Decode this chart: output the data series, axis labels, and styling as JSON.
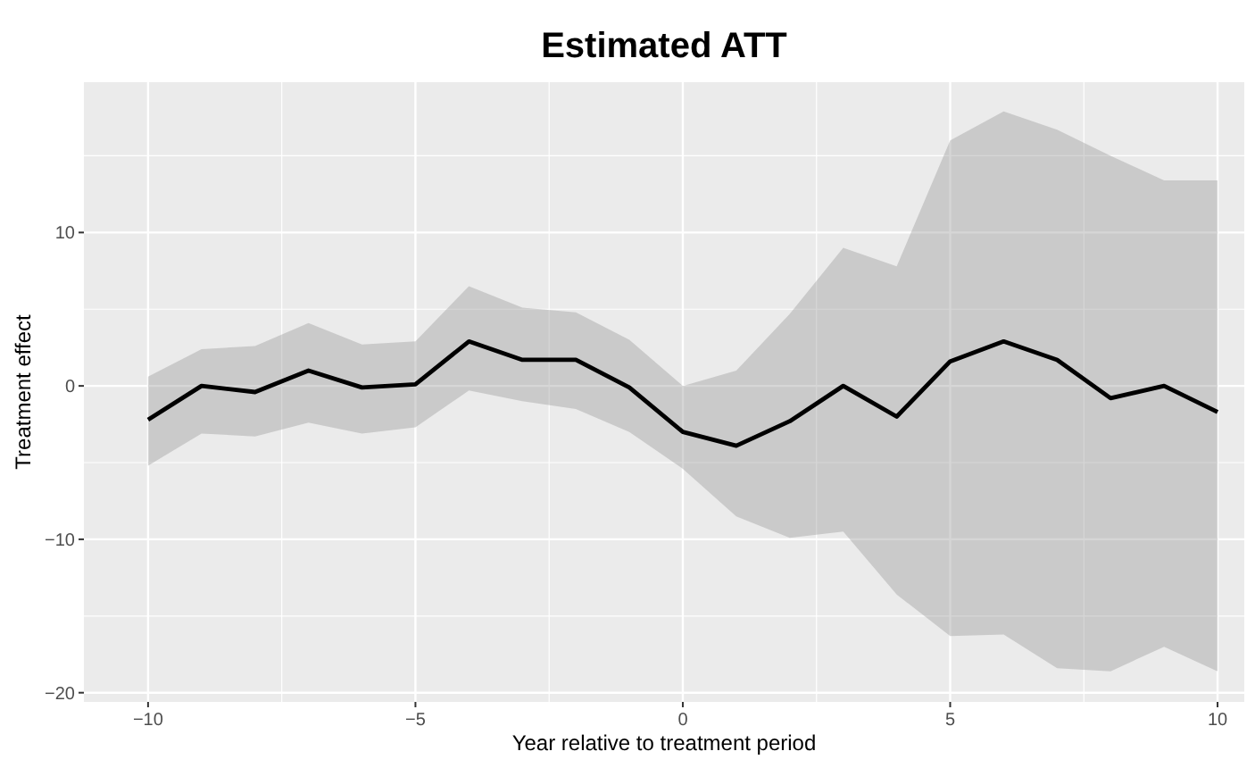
{
  "chart_data": {
    "type": "line",
    "title": "Estimated ATT",
    "xlabel": "Year relative to treatment period",
    "ylabel": "Treatment effect",
    "x": [
      -10,
      -9,
      -8,
      -7,
      -6,
      -5,
      -4,
      -3,
      -2,
      -1,
      0,
      1,
      2,
      3,
      4,
      5,
      6,
      7,
      8,
      9,
      10
    ],
    "series": [
      {
        "color": "#000000",
        "values": [
          -2.2,
          0,
          -0.4,
          1.0,
          -0.1,
          0.1,
          2.9,
          1.7,
          1.7,
          -0.1,
          -3.0,
          -3.9,
          -2.3,
          0,
          -2.0,
          1.6,
          2.9,
          1.7,
          -0.8,
          0,
          -1.7
        ],
        "upper": [
          0.6,
          2.4,
          2.6,
          4.1,
          2.7,
          2.9,
          6.5,
          5.1,
          4.8,
          3.0,
          0,
          1.0,
          4.7,
          9.0,
          7.8,
          16,
          17.9,
          16.7,
          15,
          13.4,
          13.4
        ],
        "lower": [
          -5.2,
          -3.1,
          -3.3,
          -2.4,
          -3.1,
          -2.7,
          -0.3,
          -1.0,
          -1.5,
          -3.0,
          -5.4,
          -8.5,
          -9.9,
          -9.5,
          -13.6,
          -16.3,
          -16.2,
          -18.4,
          -18.6,
          -17.0,
          -18.6
        ]
      }
    ],
    "xlim": [
      -11.2,
      10.5
    ],
    "ylim": [
      -20.6,
      19.8
    ],
    "xticks": [
      -10,
      -5,
      0,
      5,
      10
    ],
    "yticks": [
      -20,
      -10,
      0,
      10
    ],
    "grid": true
  }
}
